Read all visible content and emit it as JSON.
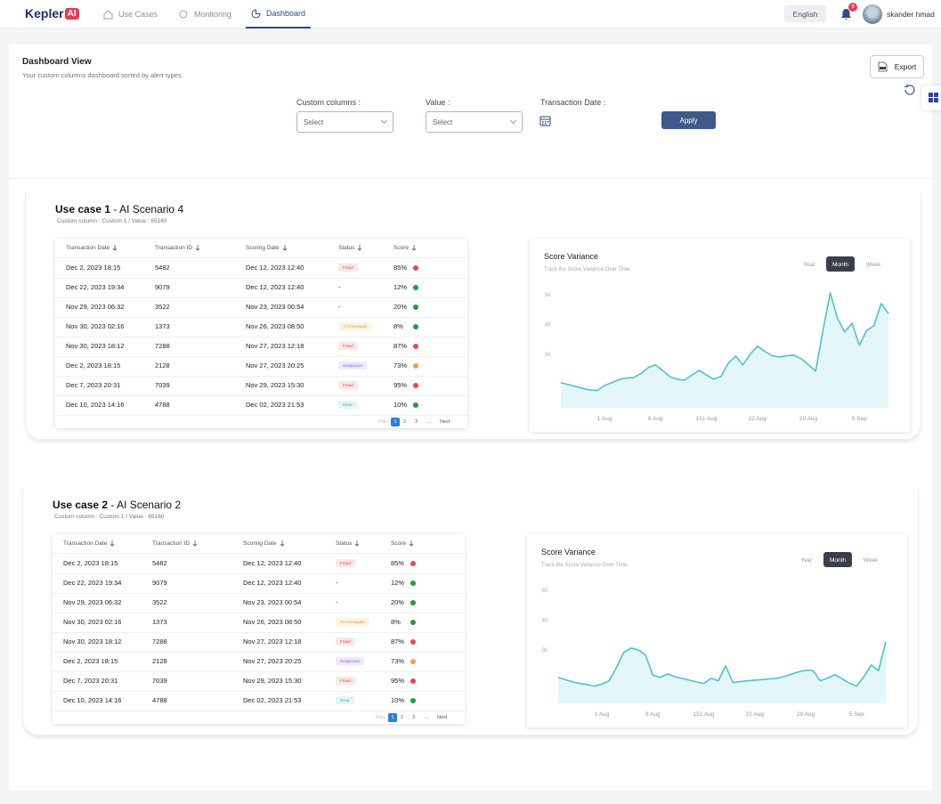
{
  "nav": {
    "logo": "Kepler",
    "logo_badge": "AI",
    "tabs": [
      "Use Cases",
      "Monitoring",
      "Dashboard"
    ],
    "active_tab": 2,
    "language": "English",
    "notifications": "9",
    "user": "skander hmad"
  },
  "header": {
    "title": "Dashboard View",
    "subtitle": "Your custom columns dashboard sorted by alert types.",
    "export": "Export"
  },
  "filters": {
    "custom_columns_label": "Custom columns :",
    "custom_columns_placeholder": "Select",
    "value_label": "Value :",
    "value_placeholder": "Select",
    "date_label": "Transaction Date :",
    "apply": "Apply"
  },
  "use_cases": [
    {
      "title": "Use case 1",
      "scenario": "- AI Scenario 4",
      "subtitle": "Custom column : Custom 1 / Value : 65160",
      "table": {
        "columns": [
          "Transaction Date",
          "Transaction ID",
          "Scoring Date",
          "Status",
          "Score"
        ],
        "rows": [
          {
            "transaction_date": "Dec 2, 2023 18:15",
            "transaction_id": "5482",
            "scoring_date": "Dec 12, 2023 12:40",
            "status": "Fraud",
            "status_color": "#e5484d",
            "score": "85%",
            "dot_color": "#e5484d"
          },
          {
            "transaction_date": "Dec 22, 2023 19:34",
            "transaction_id": "9079",
            "scoring_date": "Dec 12, 2023 12:40",
            "status": "-",
            "status_color": null,
            "score": "12%",
            "dot_color": "#1f9d3a"
          },
          {
            "transaction_date": "Nov 29, 2023 06:32",
            "transaction_id": "3522",
            "scoring_date": "Nov 23, 2023 00:54",
            "status": "-",
            "status_color": null,
            "score": "20%",
            "dot_color": "#1f9d3a"
          },
          {
            "transaction_date": "Nov 30, 2023 02:16",
            "transaction_id": "1373",
            "scoring_date": "Nov 26, 2023 08:50",
            "status": "To Investigate",
            "status_color": "#e9a23b",
            "score": "8%",
            "dot_color": "#1f9d3a"
          },
          {
            "transaction_date": "Nov 30, 2023 18:12",
            "transaction_id": "7288",
            "scoring_date": "Nov 27, 2023 12:18",
            "status": "Fraud",
            "status_color": "#e5484d",
            "score": "87%",
            "dot_color": "#e5484d"
          },
          {
            "transaction_date": "Dec 2, 2023 18:15",
            "transaction_id": "2128",
            "scoring_date": "Nov 27, 2023 20:25",
            "status": "Suspicious",
            "status_color": "#8b5cf6",
            "score": "73%",
            "dot_color": "#f0a04b"
          },
          {
            "transaction_date": "Dec 7, 2023 20:31",
            "transaction_id": "7039",
            "scoring_date": "Nov 29, 2023 15:30",
            "status": "Fraud",
            "status_color": "#e5484d",
            "score": "95%",
            "dot_color": "#e5484d"
          },
          {
            "transaction_date": "Dec 10, 2023 14:16",
            "transaction_id": "4788",
            "scoring_date": "Dec 02, 2023 21:53",
            "status": "Clear",
            "status_color": "#28b5c3",
            "score": "10%",
            "dot_color": "#1f9d3a"
          }
        ],
        "pagination": [
          "Prev",
          "1",
          "2",
          "3",
          "...",
          "Next"
        ],
        "active_page": 1
      },
      "chart_data": {
        "type": "area",
        "title": "Score Variance",
        "subtitle": "Track the Score Variance Over Time.",
        "toggles": [
          "Year",
          "Month",
          "Week"
        ],
        "active_toggle": 1,
        "color": "#4cc3cf",
        "grid": false,
        "categories": [
          null,
          null,
          null,
          null,
          null,
          null,
          "1 Aug",
          null,
          null,
          null,
          null,
          null,
          null,
          "8 Aug",
          null,
          null,
          null,
          null,
          null,
          null,
          "151 Aug",
          null,
          null,
          null,
          null,
          null,
          null,
          "22 Aug",
          null,
          null,
          null,
          null,
          null,
          null,
          "29 Aug",
          null,
          null,
          null,
          null,
          null,
          null,
          "5 Sep",
          null,
          null,
          null,
          null
        ],
        "values": [
          20.4,
          19.8,
          19.2,
          18.5,
          18,
          17.8,
          19.5,
          20.4,
          21.5,
          22,
          22.2,
          23.5,
          25.5,
          26.4,
          24.5,
          22.4,
          21.6,
          21.3,
          23,
          24.6,
          23,
          21.6,
          22.5,
          27,
          29.4,
          26.4,
          30,
          32.7,
          31,
          29.5,
          29.1,
          29.5,
          29.7,
          28.5,
          26.5,
          24.3,
          38,
          50.6,
          42,
          37.5,
          40.4,
          33,
          38,
          39.5,
          47,
          43.7
        ],
        "ylim": [
          12,
          53
        ],
        "yticks": [
          30,
          40,
          50
        ]
      }
    },
    {
      "title": "Use case 2",
      "scenario": "- AI Scenario 2",
      "subtitle": "Custom column : Custom 1 / Value : 65160",
      "table": {
        "columns": [
          "Transaction Date",
          "Transaction ID",
          "Scoring Date",
          "Status",
          "Score"
        ],
        "rows": [
          {
            "transaction_date": "Dec 2, 2023 18:15",
            "transaction_id": "5482",
            "scoring_date": "Dec 12, 2023 12:40",
            "status": "Fraud",
            "status_color": "#e5484d",
            "score": "85%",
            "dot_color": "#e5484d"
          },
          {
            "transaction_date": "Dec 22, 2023 19:34",
            "transaction_id": "9079",
            "scoring_date": "Dec 12, 2023 12:40",
            "status": "-",
            "status_color": null,
            "score": "12%",
            "dot_color": "#1f9d3a"
          },
          {
            "transaction_date": "Nov 29, 2023 06:32",
            "transaction_id": "3522",
            "scoring_date": "Nov 23, 2023 00:54",
            "status": "-",
            "status_color": null,
            "score": "20%",
            "dot_color": "#1f9d3a"
          },
          {
            "transaction_date": "Nov 30, 2023 02:16",
            "transaction_id": "1373",
            "scoring_date": "Nov 26, 2023 08:50",
            "status": "To Investigate",
            "status_color": "#e9a23b",
            "score": "8%",
            "dot_color": "#1f9d3a"
          },
          {
            "transaction_date": "Nov 30, 2023 18:12",
            "transaction_id": "7288",
            "scoring_date": "Nov 27, 2023 12:18",
            "status": "Fraud",
            "status_color": "#e5484d",
            "score": "87%",
            "dot_color": "#e5484d"
          },
          {
            "transaction_date": "Dec 2, 2023 18:15",
            "transaction_id": "2128",
            "scoring_date": "Nov 27, 2023 20:25",
            "status": "Suspicious",
            "status_color": "#8b5cf6",
            "score": "73%",
            "dot_color": "#f0a04b"
          },
          {
            "transaction_date": "Dec 7, 2023 20:31",
            "transaction_id": "7039",
            "scoring_date": "Nov 29, 2023 15:30",
            "status": "Fraud",
            "status_color": "#e5484d",
            "score": "95%",
            "dot_color": "#e5484d"
          },
          {
            "transaction_date": "Dec 10, 2023 14:16",
            "transaction_id": "4788",
            "scoring_date": "Dec 02, 2023 21:53",
            "status": "Clear",
            "status_color": "#28b5c3",
            "score": "10%",
            "dot_color": "#1f9d3a"
          }
        ],
        "pagination": [
          "Prev",
          "1",
          "2",
          "3",
          "...",
          "Next"
        ],
        "active_page": 1
      },
      "chart_data": {
        "type": "area",
        "title": "Score Variance",
        "subtitle": "Track the Score Variance Over Time.",
        "toggles": [
          "Year",
          "Month",
          "Week"
        ],
        "active_toggle": 1,
        "color": "#4cc3cf",
        "grid": false,
        "categories": [
          null,
          null,
          null,
          null,
          null,
          null,
          "1 Aug",
          null,
          null,
          null,
          null,
          null,
          null,
          "8 Aug",
          null,
          null,
          null,
          null,
          null,
          null,
          "151 Aug",
          null,
          null,
          null,
          null,
          null,
          null,
          "22 Aug",
          null,
          null,
          null,
          null,
          null,
          null,
          "29 Aug",
          null,
          null,
          null,
          null,
          null,
          null,
          "5 Sep",
          null,
          null,
          null,
          null
        ],
        "values": [
          20.7,
          20,
          19.2,
          18.7,
          18.3,
          17.8,
          18.5,
          19.6,
          24,
          29.1,
          30.6,
          30,
          28.2,
          21.5,
          20.7,
          21.9,
          21,
          20.4,
          19.8,
          19.2,
          18.7,
          20.4,
          19.6,
          24.6,
          19,
          19.3,
          19.6,
          19.8,
          20,
          20.2,
          20.4,
          21,
          21.8,
          22.6,
          23.1,
          23.1,
          19.6,
          20.5,
          21.6,
          20.3,
          18.8,
          17.8,
          21,
          24.9,
          23,
          32.7
        ],
        "ylim": [
          12,
          53
        ],
        "yticks": [
          30,
          40,
          50
        ]
      }
    }
  ]
}
